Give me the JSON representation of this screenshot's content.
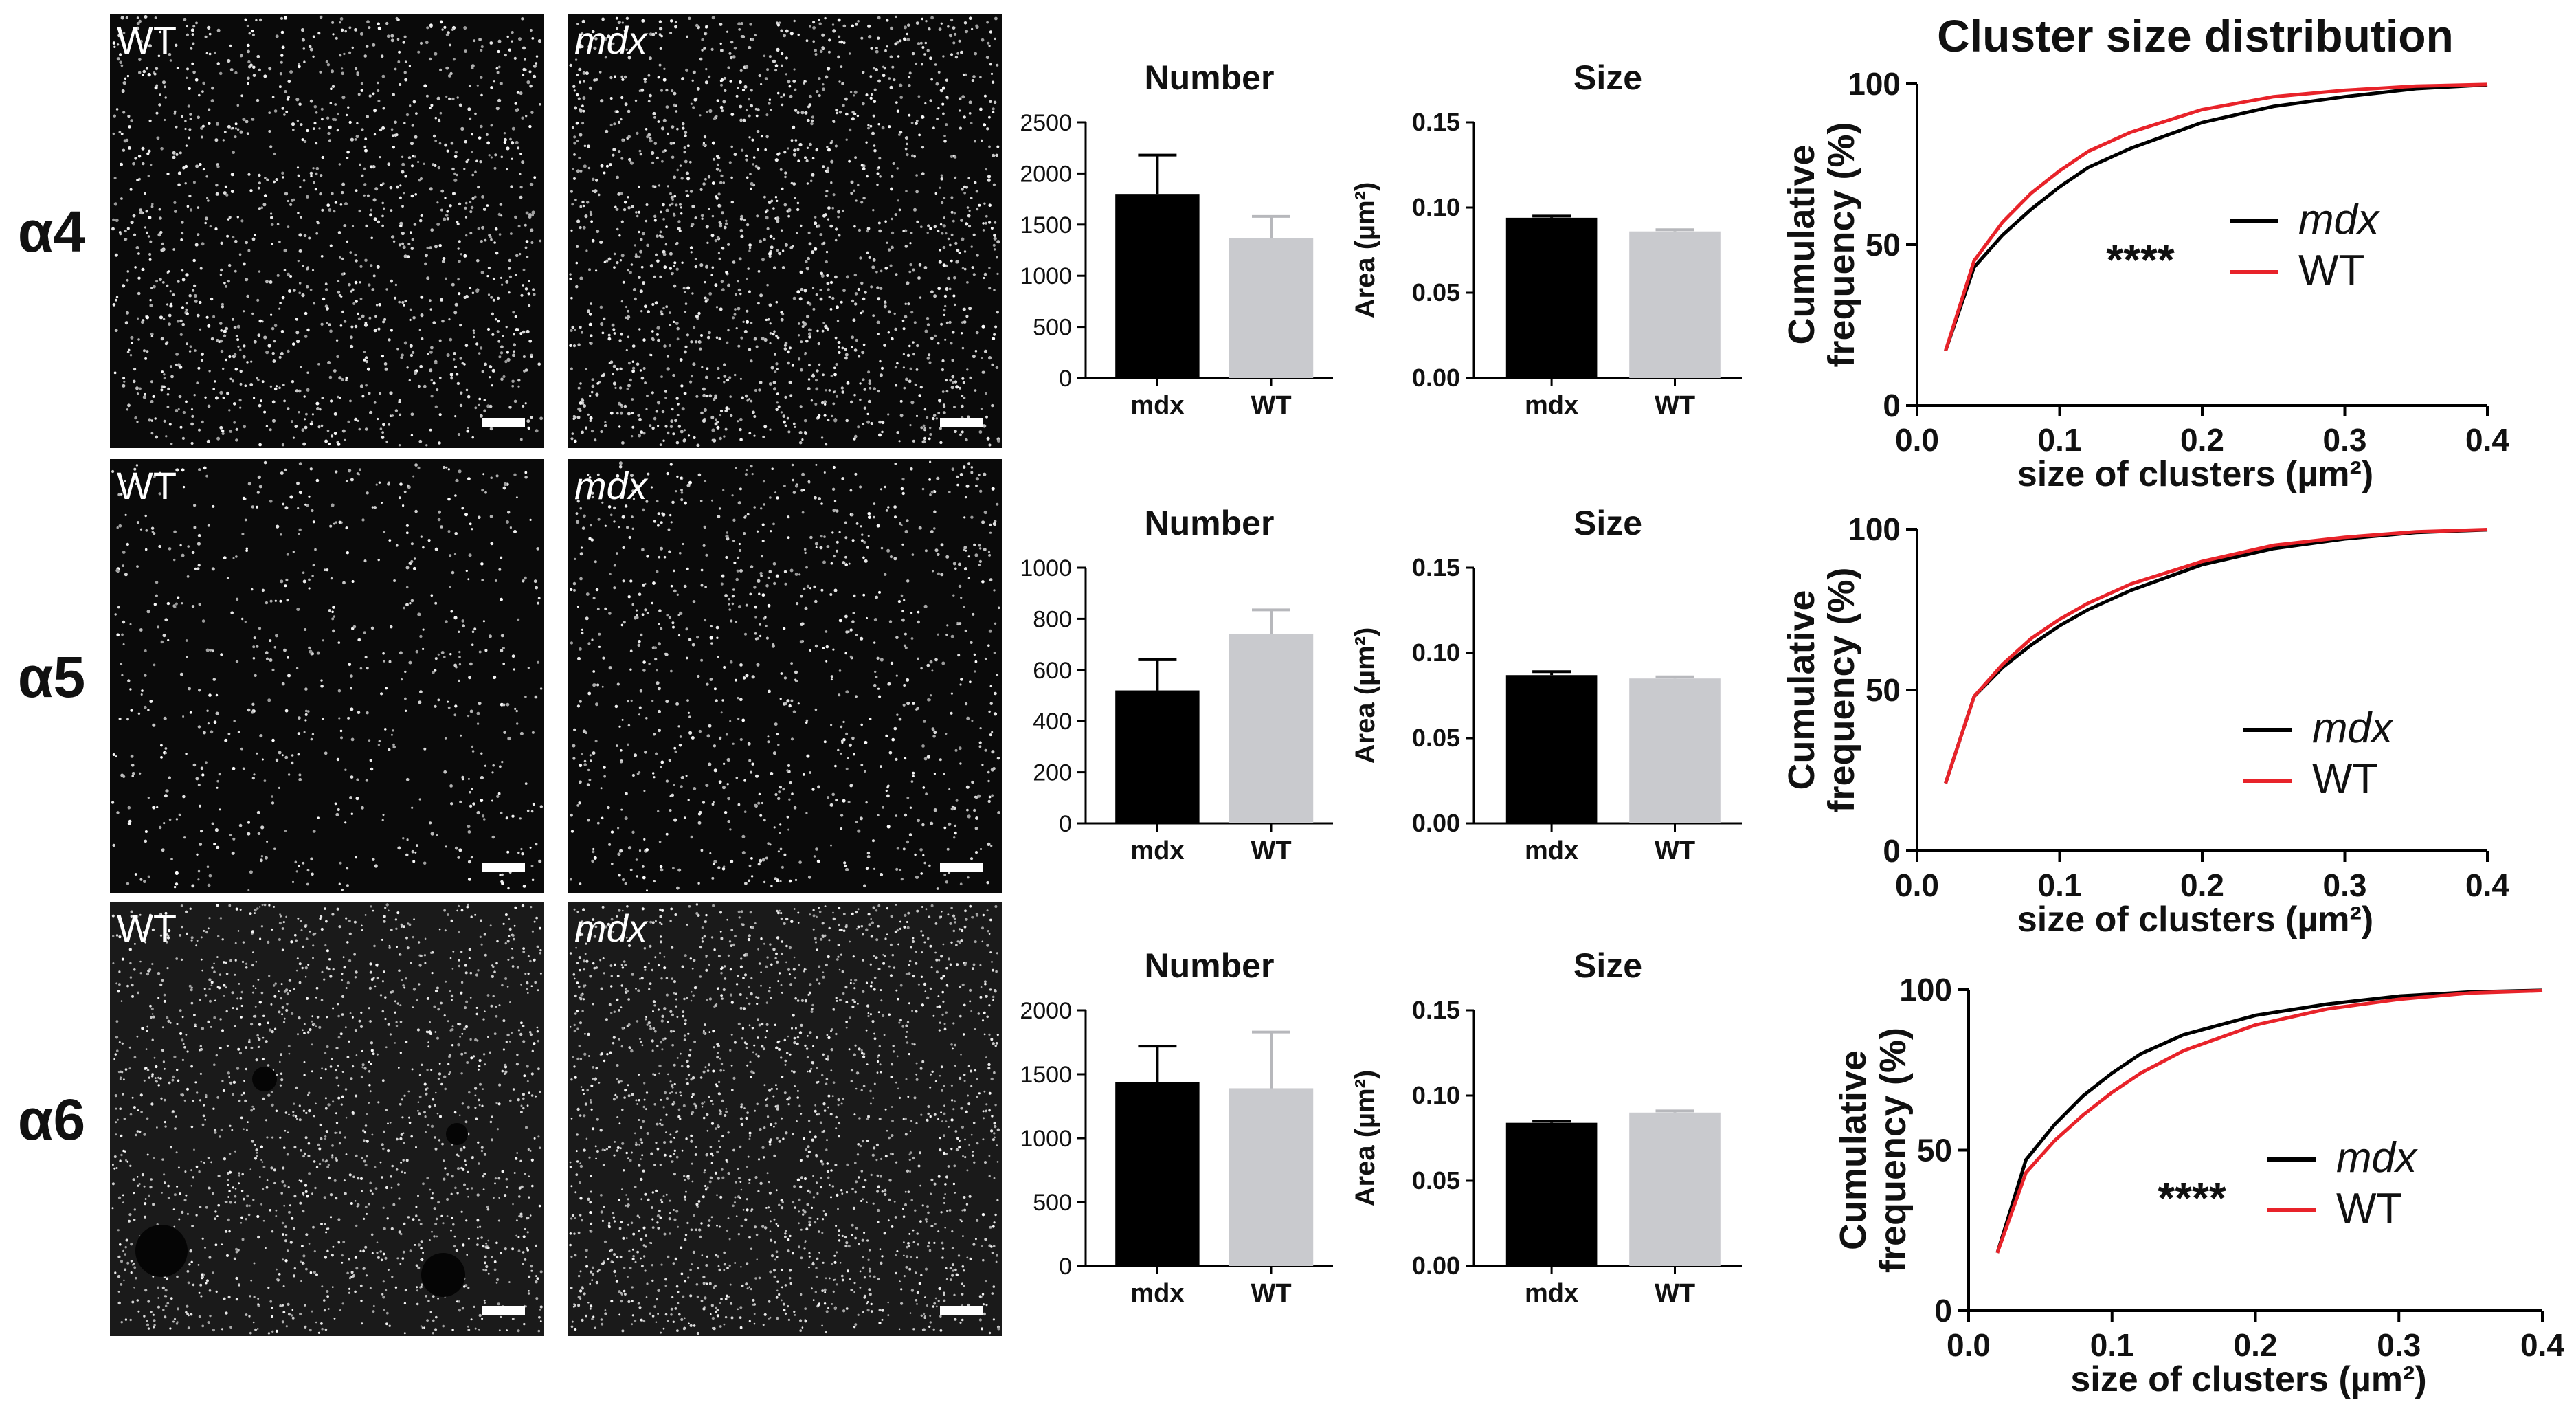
{
  "colors": {
    "mdx_bar": "#000000",
    "wt_bar": "#c9cace",
    "mdx_curve": "#000000",
    "wt_curve": "#e8232a",
    "micrograph_bg": "#0a0a0a",
    "scale_bar": "#ffffff"
  },
  "rows": [
    {
      "label": "α4",
      "images": [
        {
          "label": "WT",
          "italic": false
        },
        {
          "label": "mdx",
          "italic": true
        }
      ],
      "number": {
        "title": "Number",
        "ylim": [
          0,
          2500
        ],
        "ticks": [
          0,
          500,
          1000,
          1500,
          2000,
          2500
        ],
        "categories": [
          "mdx",
          "WT"
        ],
        "values": [
          1800,
          1370
        ],
        "errors": [
          380,
          210
        ]
      },
      "size": {
        "title": "Size",
        "ylabel": "Area (µm²)",
        "ylim": [
          0,
          0.15
        ],
        "ticks": [
          "0.00",
          "0.05",
          "0.10",
          "0.15"
        ],
        "categories": [
          "mdx",
          "WT"
        ],
        "values": [
          0.094,
          0.086
        ],
        "errors": [
          0.001,
          0.001
        ]
      },
      "cdf": {
        "title": "Cluster size distribution",
        "ylabel1": "Cumulative",
        "ylabel2": "frequency (%)",
        "xlabel": "size of clusters (µm²)",
        "xticks": [
          "0.0",
          "0.1",
          "0.2",
          "0.3",
          "0.4"
        ],
        "yticks": [
          "0",
          "50",
          "100"
        ],
        "stars": "****",
        "legend": [
          "mdx",
          "WT"
        ]
      }
    },
    {
      "label": "α5",
      "images": [
        {
          "label": "WT",
          "italic": false
        },
        {
          "label": "mdx",
          "italic": true
        }
      ],
      "number": {
        "title": "Number",
        "ylim": [
          0,
          1000
        ],
        "ticks": [
          0,
          200,
          400,
          600,
          800,
          1000
        ],
        "categories": [
          "mdx",
          "WT"
        ],
        "values": [
          520,
          740
        ],
        "errors": [
          120,
          95
        ]
      },
      "size": {
        "title": "Size",
        "ylabel": "Area (µm²)",
        "ylim": [
          0,
          0.15
        ],
        "ticks": [
          "0.00",
          "0.05",
          "0.10",
          "0.15"
        ],
        "categories": [
          "mdx",
          "WT"
        ],
        "values": [
          0.087,
          0.085
        ],
        "errors": [
          0.002,
          0.001
        ]
      },
      "cdf": {
        "title": "",
        "ylabel1": "Cumulative",
        "ylabel2": "frequency (%)",
        "xlabel": "size of clusters (µm²)",
        "xticks": [
          "0.0",
          "0.1",
          "0.2",
          "0.3",
          "0.4"
        ],
        "yticks": [
          "0",
          "50",
          "100"
        ],
        "stars": "",
        "legend": [
          "mdx",
          "WT"
        ]
      }
    },
    {
      "label": "α6",
      "images": [
        {
          "label": "WT",
          "italic": false
        },
        {
          "label": "mdx",
          "italic": true
        }
      ],
      "number": {
        "title": "Number",
        "ylim": [
          0,
          2000
        ],
        "ticks": [
          0,
          500,
          1000,
          1500,
          2000
        ],
        "categories": [
          "mdx",
          "WT"
        ],
        "values": [
          1440,
          1390
        ],
        "errors": [
          280,
          440
        ]
      },
      "size": {
        "title": "Size",
        "ylabel": "Area (µm²)",
        "ylim": [
          0,
          0.15
        ],
        "ticks": [
          "0.00",
          "0.05",
          "0.10",
          "0.15"
        ],
        "categories": [
          "mdx",
          "WT"
        ],
        "values": [
          0.084,
          0.09
        ],
        "errors": [
          0.001,
          0.001
        ]
      },
      "cdf": {
        "title": "",
        "ylabel1": "Cumulative",
        "ylabel2": "frequency (%)",
        "xlabel": "size of clusters (µm²)",
        "xticks": [
          "0.0",
          "0.1",
          "0.2",
          "0.3",
          "0.4"
        ],
        "yticks": [
          "0",
          "50",
          "100"
        ],
        "stars": "****",
        "legend": [
          "mdx",
          "WT"
        ]
      }
    }
  ],
  "chart_data": [
    {
      "type": "bar",
      "title": "Number",
      "row": "α4",
      "categories": [
        "mdx",
        "WT"
      ],
      "values": [
        1800,
        1370
      ],
      "errors": [
        380,
        210
      ],
      "ylim": [
        0,
        2500
      ]
    },
    {
      "type": "bar",
      "title": "Size",
      "row": "α4",
      "ylabel": "Area (µm²)",
      "categories": [
        "mdx",
        "WT"
      ],
      "values": [
        0.094,
        0.086
      ],
      "errors": [
        0.001,
        0.001
      ],
      "ylim": [
        0,
        0.15
      ]
    },
    {
      "type": "line",
      "title": "Cluster size distribution",
      "row": "α4",
      "xlabel": "size of clusters (µm²)",
      "ylabel": "Cumulative frequency (%)",
      "xlim": [
        0,
        0.4
      ],
      "ylim": [
        0,
        100
      ],
      "series": [
        {
          "name": "mdx",
          "x": [
            0.02,
            0.04,
            0.06,
            0.08,
            0.1,
            0.12,
            0.15,
            0.2,
            0.25,
            0.3,
            0.35,
            0.4
          ],
          "y": [
            17,
            43,
            53,
            61,
            68,
            74,
            80,
            88,
            93,
            96,
            98.5,
            99.7
          ]
        },
        {
          "name": "WT",
          "x": [
            0.02,
            0.04,
            0.06,
            0.08,
            0.1,
            0.12,
            0.15,
            0.2,
            0.25,
            0.3,
            0.35,
            0.4
          ],
          "y": [
            17,
            45,
            57,
            66,
            73,
            79,
            85,
            92,
            96,
            98,
            99.3,
            99.8
          ]
        }
      ]
    },
    {
      "type": "bar",
      "title": "Number",
      "row": "α5",
      "categories": [
        "mdx",
        "WT"
      ],
      "values": [
        520,
        740
      ],
      "errors": [
        120,
        95
      ],
      "ylim": [
        0,
        1000
      ]
    },
    {
      "type": "bar",
      "title": "Size",
      "row": "α5",
      "ylabel": "Area (µm²)",
      "categories": [
        "mdx",
        "WT"
      ],
      "values": [
        0.087,
        0.085
      ],
      "errors": [
        0.002,
        0.001
      ],
      "ylim": [
        0,
        0.15
      ]
    },
    {
      "type": "line",
      "row": "α5",
      "xlabel": "size of clusters (µm²)",
      "ylabel": "Cumulative frequency (%)",
      "xlim": [
        0,
        0.4
      ],
      "ylim": [
        0,
        100
      ],
      "series": [
        {
          "name": "mdx",
          "x": [
            0.02,
            0.04,
            0.06,
            0.08,
            0.1,
            0.12,
            0.15,
            0.2,
            0.25,
            0.3,
            0.35,
            0.4
          ],
          "y": [
            21,
            48,
            57,
            64,
            70,
            75,
            81,
            89,
            94,
            97,
            99,
            99.8
          ]
        },
        {
          "name": "WT",
          "x": [
            0.02,
            0.04,
            0.06,
            0.08,
            0.1,
            0.12,
            0.15,
            0.2,
            0.25,
            0.3,
            0.35,
            0.4
          ],
          "y": [
            21,
            48,
            58,
            66,
            72,
            77,
            83,
            90,
            95,
            97.5,
            99.2,
            99.9
          ]
        }
      ]
    },
    {
      "type": "bar",
      "title": "Number",
      "row": "α6",
      "categories": [
        "mdx",
        "WT"
      ],
      "values": [
        1440,
        1390
      ],
      "errors": [
        280,
        440
      ],
      "ylim": [
        0,
        2000
      ]
    },
    {
      "type": "bar",
      "title": "Size",
      "row": "α6",
      "ylabel": "Area (µm²)",
      "categories": [
        "mdx",
        "WT"
      ],
      "values": [
        0.084,
        0.09
      ],
      "errors": [
        0.001,
        0.001
      ],
      "ylim": [
        0,
        0.15
      ]
    },
    {
      "type": "line",
      "row": "α6",
      "xlabel": "size of clusters (µm²)",
      "ylabel": "Cumulative frequency (%)",
      "xlim": [
        0,
        0.4
      ],
      "ylim": [
        0,
        100
      ],
      "series": [
        {
          "name": "mdx",
          "x": [
            0.02,
            0.04,
            0.06,
            0.08,
            0.1,
            0.12,
            0.15,
            0.2,
            0.25,
            0.3,
            0.35,
            0.4
          ],
          "y": [
            18,
            47,
            58,
            67,
            74,
            80,
            86,
            92,
            95.5,
            98,
            99.3,
            99.8
          ]
        },
        {
          "name": "WT",
          "x": [
            0.02,
            0.04,
            0.06,
            0.08,
            0.1,
            0.12,
            0.15,
            0.2,
            0.25,
            0.3,
            0.35,
            0.4
          ],
          "y": [
            18,
            43,
            53,
            61,
            68,
            74,
            81,
            89,
            94,
            97,
            99,
            99.7
          ]
        }
      ]
    }
  ]
}
